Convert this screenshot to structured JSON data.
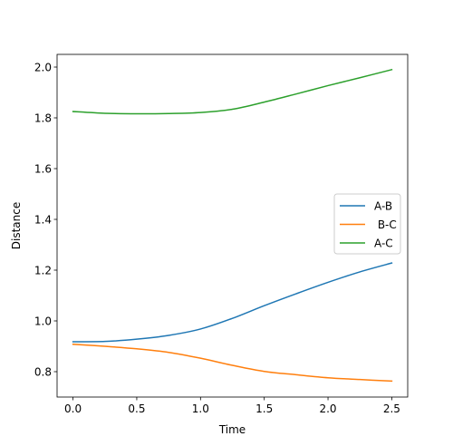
{
  "chart_data": {
    "type": "line",
    "title": "",
    "xlabel": "Time",
    "ylabel": "Distance",
    "xlim": [
      -0.125,
      2.625
    ],
    "ylim": [
      0.7,
      2.05
    ],
    "xticks": [
      0.0,
      0.5,
      1.0,
      1.5,
      2.0,
      2.5
    ],
    "xtick_labels": [
      "0.0",
      "0.5",
      "1.0",
      "1.5",
      "2.0",
      "2.5"
    ],
    "yticks": [
      0.8,
      1.0,
      1.2,
      1.4,
      1.6,
      1.8,
      2.0
    ],
    "ytick_labels": [
      "0.8",
      "1.0",
      "1.2",
      "1.4",
      "1.6",
      "1.8",
      "2.0"
    ],
    "grid": false,
    "legend_position": "center-right",
    "x": [
      0.0,
      0.25,
      0.5,
      0.75,
      1.0,
      1.25,
      1.5,
      1.75,
      2.0,
      2.25,
      2.5
    ],
    "series": [
      {
        "name": "A-B",
        "color": "#1f77b4",
        "values": [
          0.918,
          0.919,
          0.928,
          0.943,
          0.968,
          1.01,
          1.06,
          1.107,
          1.152,
          1.193,
          1.228
        ]
      },
      {
        "name": " B-C",
        "color": "#ff7f0e",
        "values": [
          0.908,
          0.9,
          0.89,
          0.876,
          0.853,
          0.825,
          0.801,
          0.788,
          0.776,
          0.769,
          0.763
        ]
      },
      {
        "name": "A-C",
        "color": "#2ca02c",
        "values": [
          1.825,
          1.818,
          1.816,
          1.817,
          1.821,
          1.834,
          1.862,
          1.894,
          1.927,
          1.958,
          1.99
        ]
      }
    ]
  }
}
